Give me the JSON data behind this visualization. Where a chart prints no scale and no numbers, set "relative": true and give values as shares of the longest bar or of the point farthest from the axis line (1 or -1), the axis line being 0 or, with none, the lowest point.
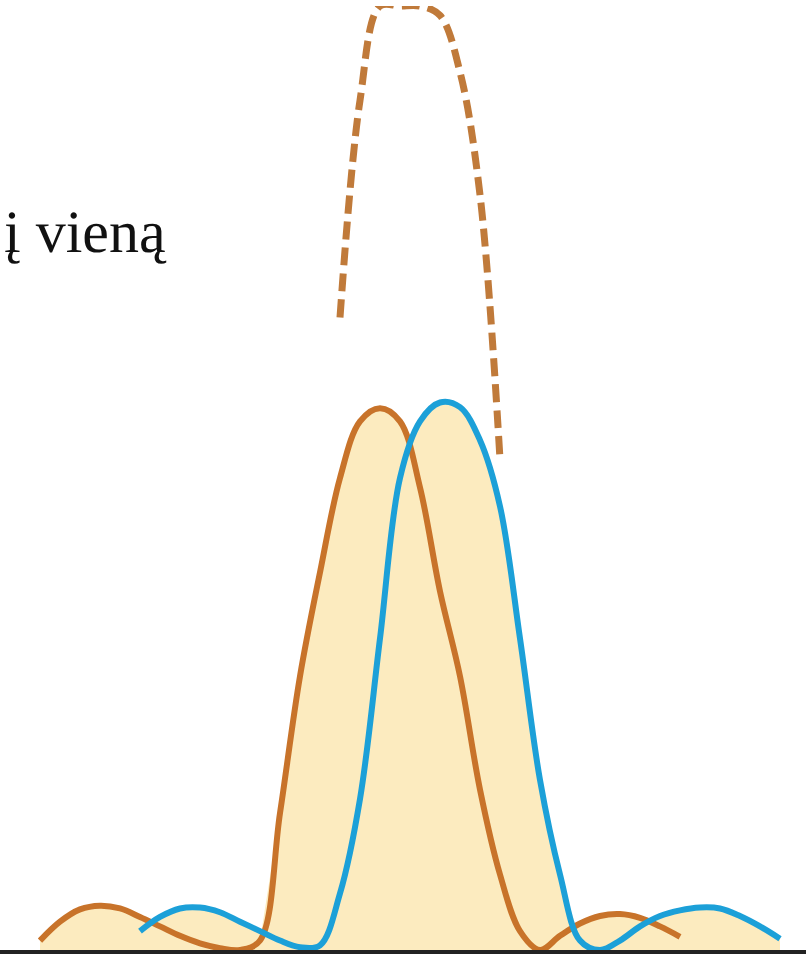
{
  "chart_data": {
    "type": "line",
    "relative": true,
    "categories": [
      null,
      null,
      null,
      null,
      null,
      null,
      null,
      null,
      null,
      null,
      null,
      null,
      null,
      null,
      null,
      null,
      null,
      null,
      null,
      null,
      null,
      null,
      null,
      null,
      null,
      null,
      null,
      null,
      null,
      null,
      null,
      null,
      null,
      null,
      null,
      null,
      null,
      null
    ],
    "annotations": [
      "į vieną"
    ],
    "series": [
      {
        "color": "#c8732a",
        "line_style": "solid",
        "values": [
          0.01,
          0.03,
          0.043,
          0.047,
          0.044,
          0.035,
          0.025,
          0.015,
          0.007,
          0.002,
          0.0,
          0.01,
          0.145,
          0.29,
          0.4,
          0.5,
          0.56,
          0.574,
          0.56,
          0.49,
          0.38,
          0.29,
          0.17,
          0.08,
          0.02,
          0.0,
          0.015,
          0.028,
          0.036,
          0.038,
          0.034,
          0.025,
          0.014,
          null,
          null,
          null,
          null,
          null
        ]
      },
      {
        "color": "#1ca0d8",
        "line_style": "solid",
        "values": [
          null,
          null,
          null,
          null,
          null,
          0.02,
          0.035,
          0.044,
          0.045,
          0.04,
          0.03,
          0.02,
          0.01,
          0.003,
          0.005,
          0.06,
          0.16,
          0.33,
          0.5,
          0.56,
          0.58,
          0.575,
          0.54,
          0.47,
          0.33,
          0.18,
          0.08,
          0.01,
          0.0,
          0.01,
          0.025,
          0.036,
          0.042,
          0.045,
          0.044,
          0.036,
          0.025,
          0.012
        ]
      },
      {
        "color": "#c07a3a",
        "line_style": "dashed",
        "values": [
          null,
          null,
          null,
          null,
          null,
          null,
          null,
          null,
          null,
          null,
          null,
          null,
          null,
          null,
          null,
          0.67,
          0.9,
          1.0,
          1.0,
          1.0,
          0.99,
          0.93,
          0.8,
          0.52,
          null,
          null,
          null,
          null,
          null,
          null,
          null,
          null,
          null,
          null,
          null,
          null,
          null,
          null
        ]
      }
    ]
  }
}
